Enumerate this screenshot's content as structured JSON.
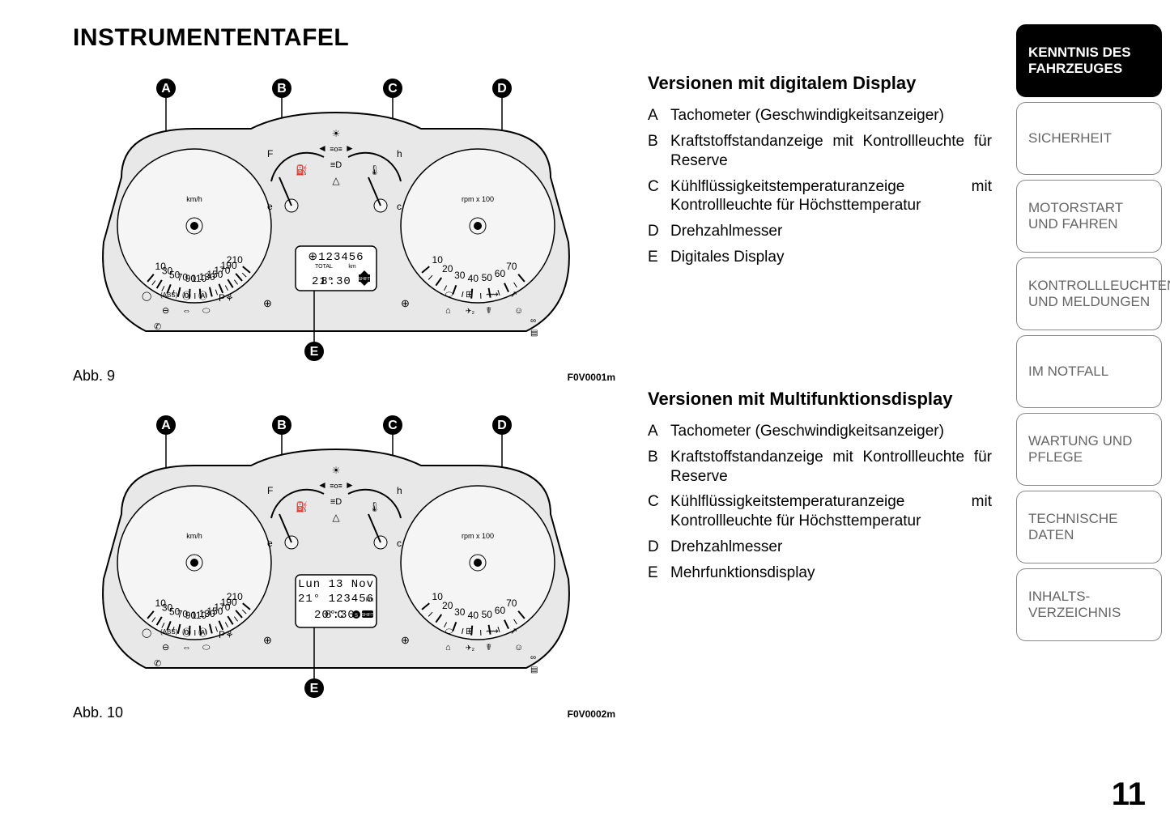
{
  "page_title": "INSTRUMENTENTAFEL",
  "page_number": "11",
  "figure1": {
    "label": "Abb. 9",
    "code": "F0V0001m",
    "callouts": [
      "A",
      "B",
      "C",
      "D",
      "E"
    ],
    "speedo_ticks": [
      "10",
      "30",
      "50",
      "70",
      "90",
      "110",
      "130",
      "150",
      "170",
      "190",
      "210"
    ],
    "speedo_unit": "km/h",
    "tacho_ticks": [
      "10",
      "20",
      "30",
      "40",
      "50",
      "60",
      "70"
    ],
    "tacho_unit": "rpm x 100",
    "fuel_labels": {
      "empty": "e",
      "full": "F"
    },
    "temp_labels": {
      "cold": "c",
      "hot": "h"
    },
    "lcd": {
      "odo_icon": "⊕",
      "odo": "123456",
      "odo_label": "TOTAL",
      "odo_unit": "km",
      "temp": "21°",
      "clock": "8:30",
      "shift": "SHIFT"
    }
  },
  "figure2": {
    "label": "Abb. 10",
    "code": "F0V0002m",
    "callouts": [
      "A",
      "B",
      "C",
      "D",
      "E"
    ],
    "speedo_ticks": [
      "10",
      "30",
      "50",
      "70",
      "90",
      "110",
      "130",
      "150",
      "170",
      "190",
      "210"
    ],
    "speedo_unit": "km/h",
    "tacho_ticks": [
      "10",
      "20",
      "30",
      "40",
      "50",
      "60",
      "70"
    ],
    "tacho_unit": "rpm x 100",
    "fuel_labels": {
      "empty": "e",
      "full": "F"
    },
    "temp_labels": {
      "cold": "c",
      "hot": "h"
    },
    "lcd": {
      "date": "Lun 13 Nov",
      "odo": "123456",
      "odo_unit": "km",
      "temp": "20°C",
      "clock": "8:30",
      "shift": "SHIFT",
      "temp_prefix": "21°"
    }
  },
  "section1": {
    "title": "Versionen mit digitalem Display",
    "items": [
      {
        "k": "A",
        "t": "Tachometer (Geschwindigkeitsan­zeiger)"
      },
      {
        "k": "B",
        "t": "Kraftstoffstandanzeige mit Kon­trollleuchte für Reserve"
      },
      {
        "k": "C",
        "t": "Kühlflüssigkeitstemperaturanzeige mit Kontrollleuchte für Höchst­temperatur"
      },
      {
        "k": "D",
        "t": "Drehzahlmesser"
      },
      {
        "k": "E",
        "t": "Digitales Display"
      }
    ]
  },
  "section2": {
    "title": "Versionen mit Multifunktionsdisplay",
    "items": [
      {
        "k": "A",
        "t": "Tachometer (Geschwindigkeitsan­zeiger)"
      },
      {
        "k": "B",
        "t": "Kraftstoffstandanzeige mit Kon­trollleuchte für Reserve"
      },
      {
        "k": "C",
        "t": "Kühlflüssigkeitstemperaturanzeige mit Kontrollleuchte für Höchst­temperatur"
      },
      {
        "k": "D",
        "t": "Drehzahlmesser"
      },
      {
        "k": "E",
        "t": "Mehrfunktionsdisplay"
      }
    ]
  },
  "tabs": [
    {
      "label": "KENNTNIS DES FAHRZEUGES",
      "active": true
    },
    {
      "label": "SICHERHEIT",
      "active": false
    },
    {
      "label": "MOTORSTART UND FAHREN",
      "active": false
    },
    {
      "label": "KONTROLLLEUCHTEN UND MELDUNGEN",
      "active": false
    },
    {
      "label": "IM NOTFALL",
      "active": false
    },
    {
      "label": "WARTUNG UND PFLEGE",
      "active": false
    },
    {
      "label": "TECHNISCHE DATEN",
      "active": false
    },
    {
      "label": "INHALTS­VERZEICHNIS",
      "active": false
    }
  ],
  "colors": {
    "cluster_fill": "#e8e8e8",
    "dial_fill": "#f5f5f5",
    "stroke": "#000000",
    "callout_fill": "#000000"
  }
}
